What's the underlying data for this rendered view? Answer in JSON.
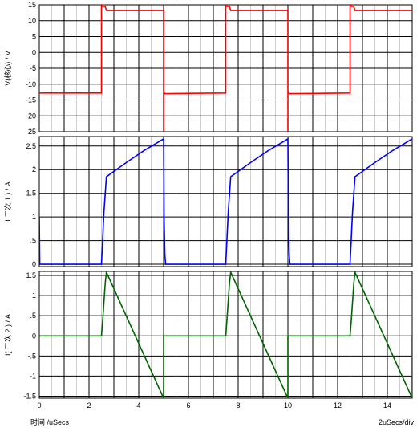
{
  "chart_data": [
    {
      "type": "line",
      "ylabel": "V(核心) / V",
      "ylim": [
        -25,
        15
      ],
      "yticks": [
        15,
        10,
        5,
        0,
        -5,
        -10,
        -15,
        -20,
        -25
      ],
      "xlim": [
        0,
        15
      ],
      "series": [
        {
          "color": "#ff0000",
          "x": [
            0,
            2.5,
            2.5,
            2.55,
            2.55,
            2.65,
            2.7,
            5.0,
            5.0,
            5.0,
            5.05,
            5.1,
            7.5,
            7.5,
            7.55,
            7.55,
            7.65,
            7.7,
            10.0,
            10.0,
            10.0,
            10.05,
            10.1,
            12.5,
            12.5,
            12.55,
            12.55,
            12.65,
            12.7,
            15.0
          ],
          "y": [
            -12.8,
            -12.8,
            14.5,
            19,
            14.5,
            14.5,
            13.2,
            13.2,
            -25,
            -12.2,
            -13,
            -13,
            -12.8,
            14.5,
            19,
            14.5,
            14.5,
            13.2,
            13.2,
            -25,
            -12.2,
            -13,
            -13,
            -12.8,
            14.5,
            19,
            14.5,
            14.5,
            13.2,
            13.2
          ]
        }
      ]
    },
    {
      "type": "line",
      "ylabel": "I  二次 1 ) / A",
      "ylim": [
        -0.05,
        2.7
      ],
      "yticks": [
        2.5,
        2,
        1.5,
        1,
        0.5,
        0
      ],
      "ytick_labels": [
        "2.5",
        "2",
        "1.5",
        "1",
        ".5",
        "0"
      ],
      "xlim": [
        0,
        15
      ],
      "series": [
        {
          "color": "#0000ff",
          "x": [
            0,
            0,
            0.02,
            2.5,
            2.6,
            2.7,
            3.5,
            4.2,
            5.0,
            5.02,
            5.05,
            5.08,
            7.5,
            7.6,
            7.7,
            8.5,
            9.2,
            10.0,
            10.02,
            10.05,
            10.08,
            12.5,
            12.6,
            12.7,
            13.5,
            14.2,
            15.0
          ],
          "y": [
            1.0,
            1.0,
            0,
            0,
            1.1,
            1.85,
            2.15,
            2.4,
            2.65,
            1.0,
            0.2,
            0,
            0,
            1.1,
            1.85,
            2.15,
            2.4,
            2.65,
            1.0,
            0.2,
            0,
            0,
            1.1,
            1.85,
            2.15,
            2.4,
            2.65
          ]
        }
      ]
    },
    {
      "type": "line",
      "ylabel": "I(  二次 2 ) / A",
      "ylim": [
        -1.55,
        1.6
      ],
      "yticks": [
        1.5,
        1,
        0.5,
        0,
        -0.5,
        -1,
        -1.5
      ],
      "ytick_labels": [
        "1.5",
        "1",
        ".5",
        "0",
        "-.5",
        "-1",
        "-1.5"
      ],
      "xlim": [
        0,
        15
      ],
      "xticks": [
        0,
        2,
        4,
        6,
        8,
        10,
        12,
        14
      ],
      "series": [
        {
          "color": "#006400",
          "x": [
            0,
            2.5,
            2.55,
            2.65,
            2.7,
            5.0,
            5.0,
            5.05,
            5.1,
            7.5,
            7.55,
            7.65,
            7.7,
            10.0,
            10.0,
            10.05,
            10.1,
            12.5,
            12.55,
            12.65,
            12.7,
            15.0,
            15.0
          ],
          "y": [
            0,
            0,
            0.4,
            1.3,
            1.58,
            -1.55,
            0,
            0,
            0,
            0,
            0.4,
            1.3,
            1.58,
            -1.55,
            0,
            0,
            0,
            0,
            0.4,
            1.3,
            1.58,
            -1.55,
            0
          ]
        }
      ]
    }
  ],
  "footer": {
    "xlabel": "时间 /uSecs",
    "scale": "2uSecs/div"
  }
}
